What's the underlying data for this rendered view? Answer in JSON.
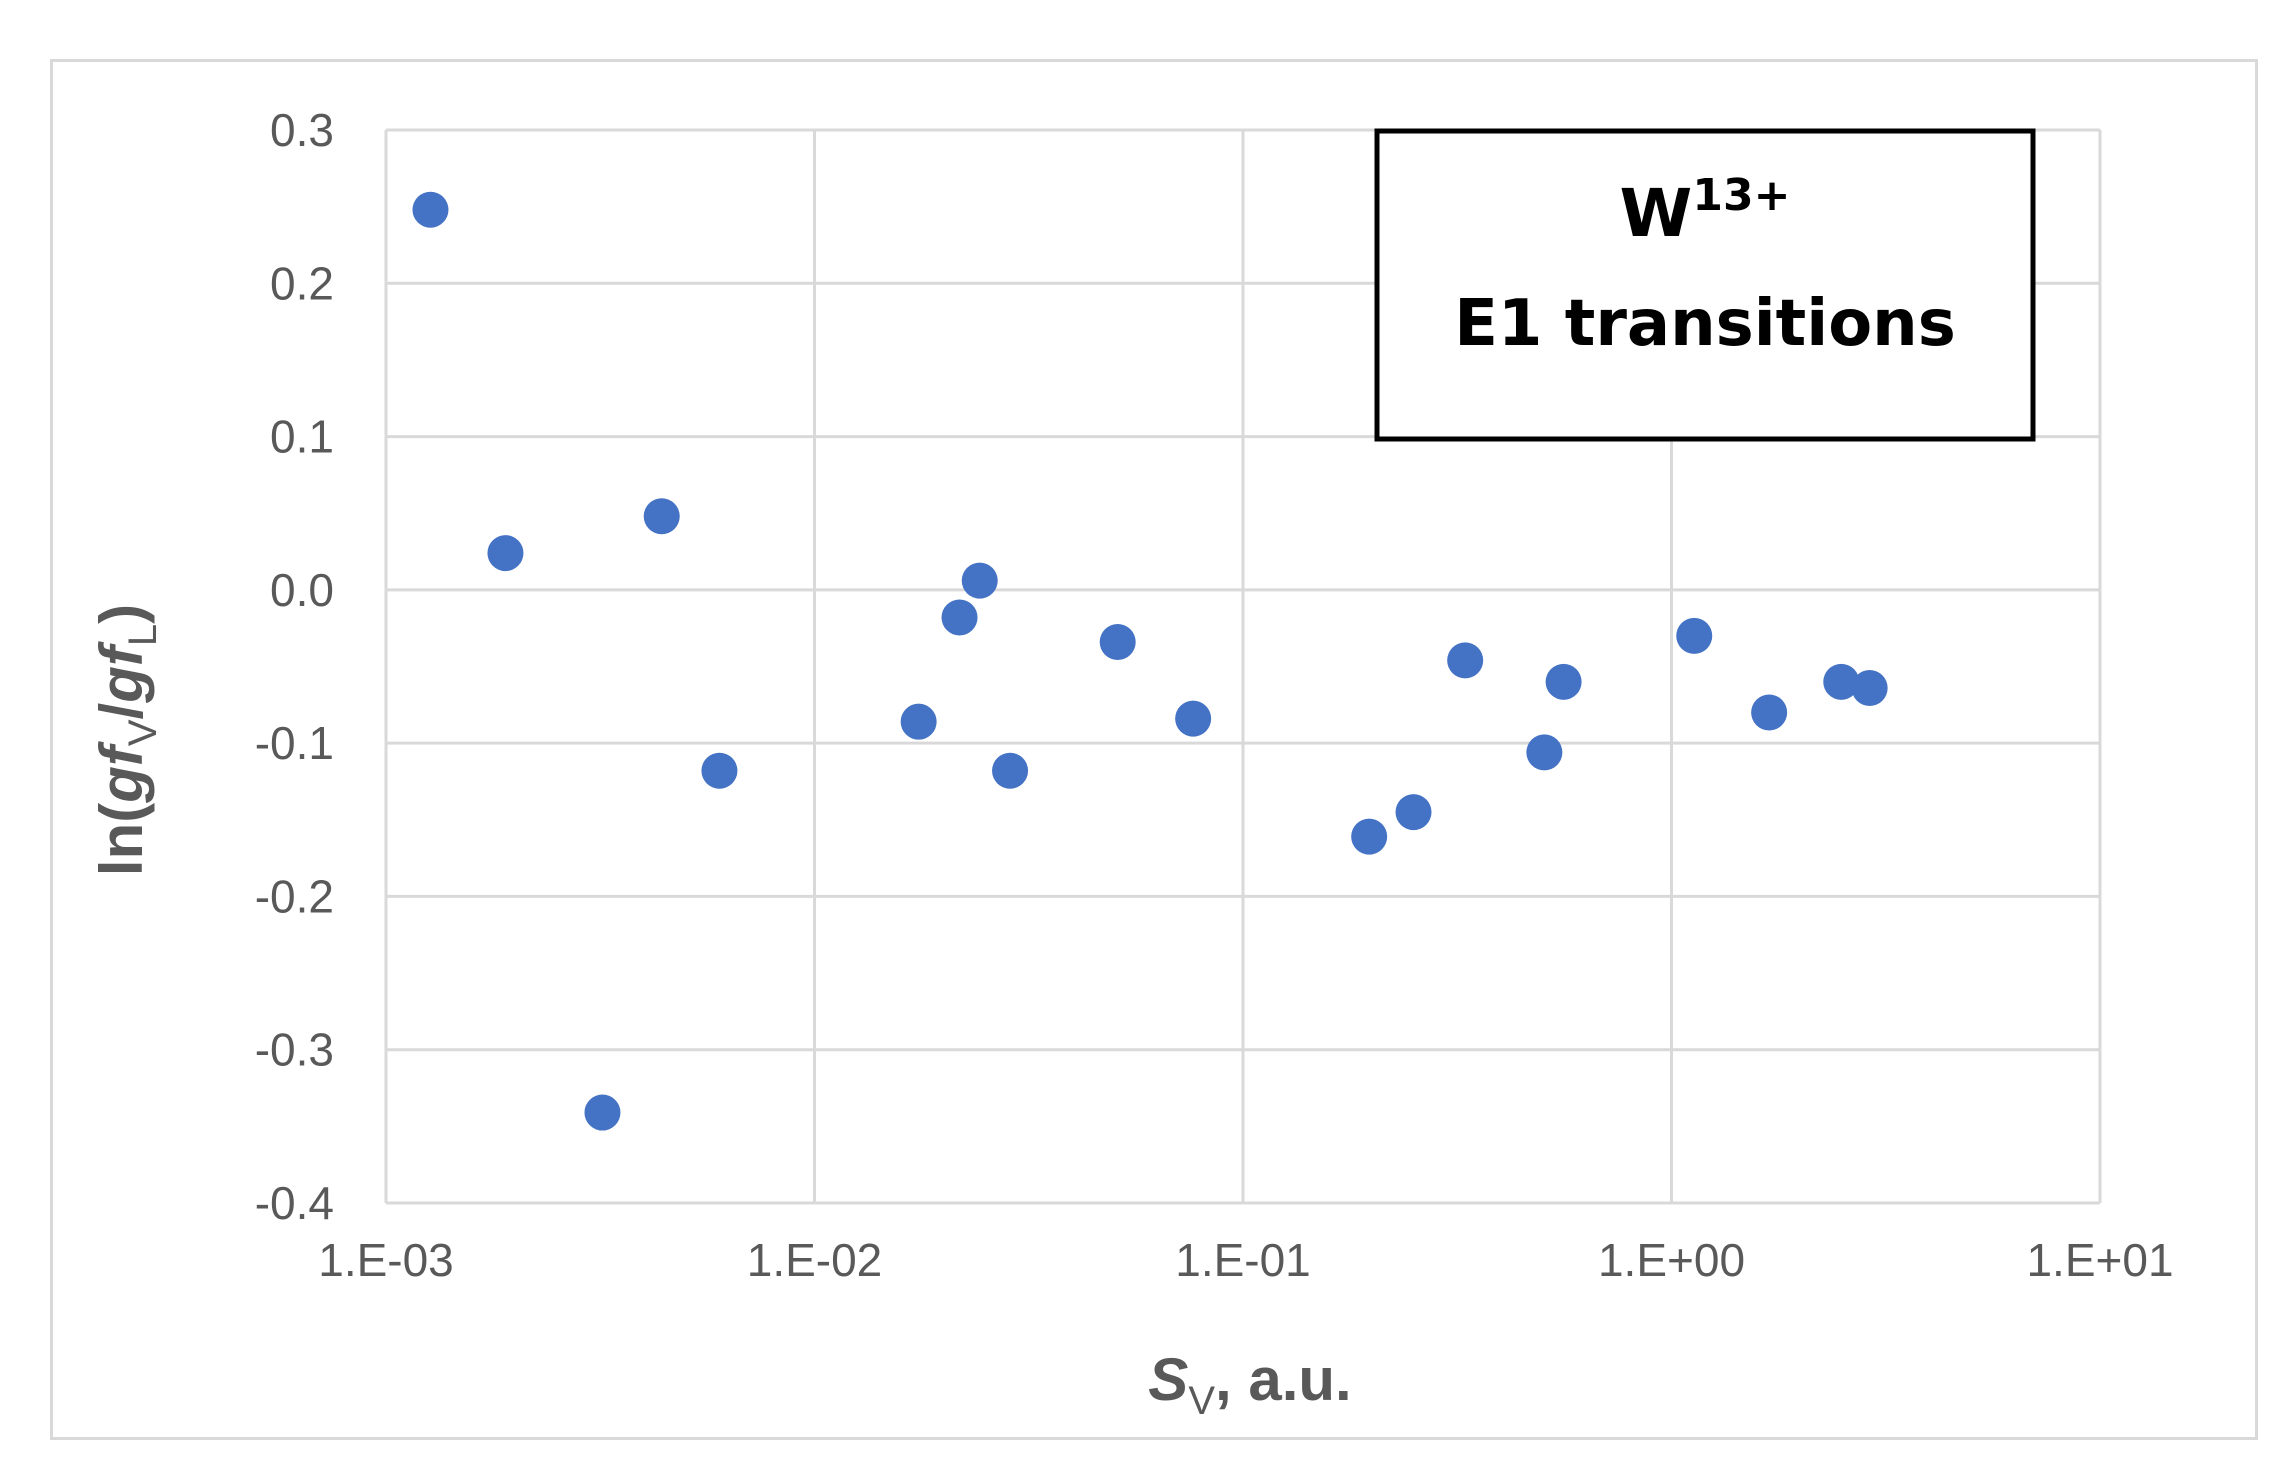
{
  "chart_data": {
    "type": "scatter",
    "x_scale": "log",
    "xlim": [
      0.001,
      10
    ],
    "ylim": [
      -0.4,
      0.3
    ],
    "x_ticks": [
      "1.E-03",
      "1.E-02",
      "1.E-01",
      "1.E+00",
      "1.E+01"
    ],
    "y_ticks": [
      "0.3",
      "0.2",
      "0.1",
      "0.0",
      "-0.1",
      "-0.2",
      "-0.3",
      "-0.4"
    ],
    "xlabel": {
      "main": "S",
      "sub": "V",
      "rest": ", a.u."
    },
    "ylabel": {
      "pre": "ln(",
      "gf1": "gf",
      "sub1": "V",
      "slash": "/",
      "gf2": "gf",
      "sub2": "L",
      "post": ")"
    },
    "annotation": {
      "line1_main": "W",
      "line1_sup": "13+",
      "line2": "E1 transitions"
    },
    "grid": true,
    "marker_color": "#4472c4",
    "points": [
      {
        "x": 0.00127,
        "y": 0.248
      },
      {
        "x": 0.0019,
        "y": 0.024
      },
      {
        "x": 0.0032,
        "y": -0.341
      },
      {
        "x": 0.0044,
        "y": 0.048
      },
      {
        "x": 0.006,
        "y": -0.118
      },
      {
        "x": 0.0175,
        "y": -0.086
      },
      {
        "x": 0.0218,
        "y": -0.018
      },
      {
        "x": 0.0243,
        "y": 0.006
      },
      {
        "x": 0.0286,
        "y": -0.118
      },
      {
        "x": 0.051,
        "y": -0.034
      },
      {
        "x": 0.0765,
        "y": -0.084
      },
      {
        "x": 0.197,
        "y": -0.161
      },
      {
        "x": 0.25,
        "y": -0.145
      },
      {
        "x": 0.33,
        "y": -0.046
      },
      {
        "x": 0.505,
        "y": -0.106
      },
      {
        "x": 0.56,
        "y": -0.06
      },
      {
        "x": 1.13,
        "y": -0.03
      },
      {
        "x": 1.69,
        "y": -0.08
      },
      {
        "x": 2.49,
        "y": -0.06
      },
      {
        "x": 2.9,
        "y": -0.064
      }
    ]
  }
}
